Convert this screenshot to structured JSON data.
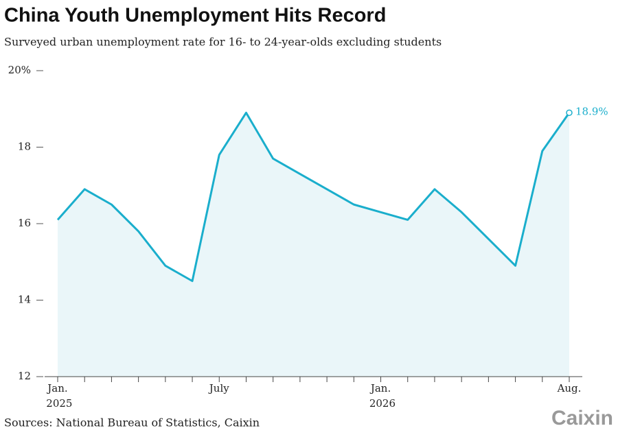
{
  "chart_data": {
    "type": "line",
    "title": "China Youth Unemployment Hits Record",
    "subtitle": "Surveyed urban unemployment rate for 16- to 24-year-olds excluding students",
    "source": "Sources: National Bureau of Statistics, Caixin",
    "brand": "Caixin",
    "categories": [
      "Jan. 2025",
      null,
      null,
      null,
      null,
      null,
      "July",
      null,
      null,
      null,
      null,
      null,
      "Jan. 2026",
      null,
      null,
      null,
      null,
      null,
      null,
      "Aug."
    ],
    "series": [
      {
        "color": "#1aaecc",
        "values": [
          16.1,
          16.9,
          16.5,
          15.8,
          14.9,
          14.5,
          17.8,
          18.9,
          17.7,
          17.3,
          16.9,
          16.5,
          16.3,
          16.1,
          16.9,
          16.3,
          15.6,
          14.9,
          17.9,
          18.9
        ],
        "value_labels": [
          null,
          null,
          null,
          null,
          null,
          null,
          null,
          null,
          null,
          null,
          null,
          null,
          null,
          null,
          null,
          null,
          null,
          null,
          null,
          "18.9%"
        ]
      }
    ],
    "ylim": [
      12,
      20
    ],
    "yticks": [
      12,
      14,
      16,
      18,
      {
        "value": 20,
        "label": "20%"
      }
    ]
  }
}
